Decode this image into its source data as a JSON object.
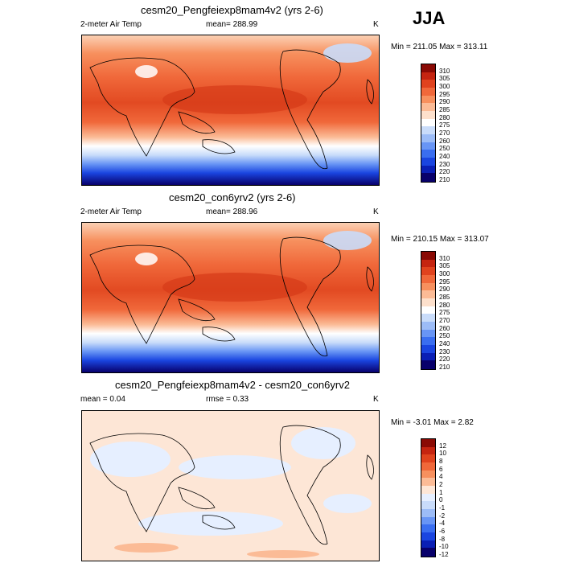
{
  "season": "JJA",
  "panels": [
    {
      "title": "cesm20_Pengfeiexp8mam4v2 (yrs 2-6)",
      "left_label": "2-meter Air Temp",
      "center_label": "mean= 288.99",
      "units": "K",
      "minmax": "Min = 211.05 Max = 313.11"
    },
    {
      "title": "cesm20_con6yrv2 (yrs 2-6)",
      "left_label": "2-meter Air Temp",
      "center_label": "mean= 288.96",
      "units": "K",
      "minmax": "Min = 210.15 Max = 313.07"
    },
    {
      "title": "cesm20_Pengfeiexp8mam4v2 - cesm20_con6yrv2",
      "left_label": "mean =   0.04",
      "center_label": "rmse =    0.33",
      "units": "K",
      "minmax": "Min =  -3.01 Max =   2.82"
    }
  ],
  "chart_data": [
    {
      "type": "heatmap",
      "title": "cesm20_Pengfeiexp8mam4v2 (yrs 2-6)",
      "variable": "2-meter Air Temp",
      "units": "K",
      "mean": 288.99,
      "min": 211.05,
      "max": 313.11,
      "colorbar_levels": [
        210,
        220,
        230,
        240,
        250,
        260,
        270,
        275,
        280,
        285,
        290,
        295,
        300,
        305,
        310
      ],
      "colorbar_labels": [
        "310",
        "305",
        "300",
        "295",
        "290",
        "285",
        "280",
        "275",
        "270",
        "260",
        "250",
        "240",
        "230",
        "220",
        "210"
      ]
    },
    {
      "type": "heatmap",
      "title": "cesm20_con6yrv2 (yrs 2-6)",
      "variable": "2-meter Air Temp",
      "units": "K",
      "mean": 288.96,
      "min": 210.15,
      "max": 313.07,
      "colorbar_levels": [
        210,
        220,
        230,
        240,
        250,
        260,
        270,
        275,
        280,
        285,
        290,
        295,
        300,
        305,
        310
      ],
      "colorbar_labels": [
        "310",
        "305",
        "300",
        "295",
        "290",
        "285",
        "280",
        "275",
        "270",
        "260",
        "250",
        "240",
        "230",
        "220",
        "210"
      ]
    },
    {
      "type": "heatmap",
      "title": "cesm20_Pengfeiexp8mam4v2 - cesm20_con6yrv2",
      "units": "K",
      "mean": 0.04,
      "rmse": 0.33,
      "min": -3.01,
      "max": 2.82,
      "colorbar_levels": [
        -12,
        -10,
        -8,
        -6,
        -4,
        -2,
        -1,
        0,
        1,
        2,
        4,
        6,
        8,
        10,
        12
      ],
      "colorbar_labels": [
        "12",
        "10",
        "8",
        "6",
        "4",
        "2",
        "1",
        "0",
        "-1",
        "-2",
        "-4",
        "-6",
        "-8",
        "-10",
        "-12"
      ]
    }
  ],
  "colors": {
    "temp_scale": [
      "#08006b",
      "#0a1fb5",
      "#1a45e0",
      "#3a6ef0",
      "#6895f5",
      "#9cbcf7",
      "#c9dcfa",
      "#ffffff",
      "#fde0cc",
      "#fbbb96",
      "#f7905e",
      "#f0683a",
      "#e0431e",
      "#c52410",
      "#8a0a04"
    ],
    "diff_scale": [
      "#08006b",
      "#0a1fb5",
      "#1a45e0",
      "#3a6ef0",
      "#6895f5",
      "#9cbcf7",
      "#c9dcfa",
      "#e6efff",
      "#fde6d6",
      "#fbbb96",
      "#f7905e",
      "#f0683a",
      "#e0431e",
      "#c52410",
      "#8a0a04"
    ]
  }
}
